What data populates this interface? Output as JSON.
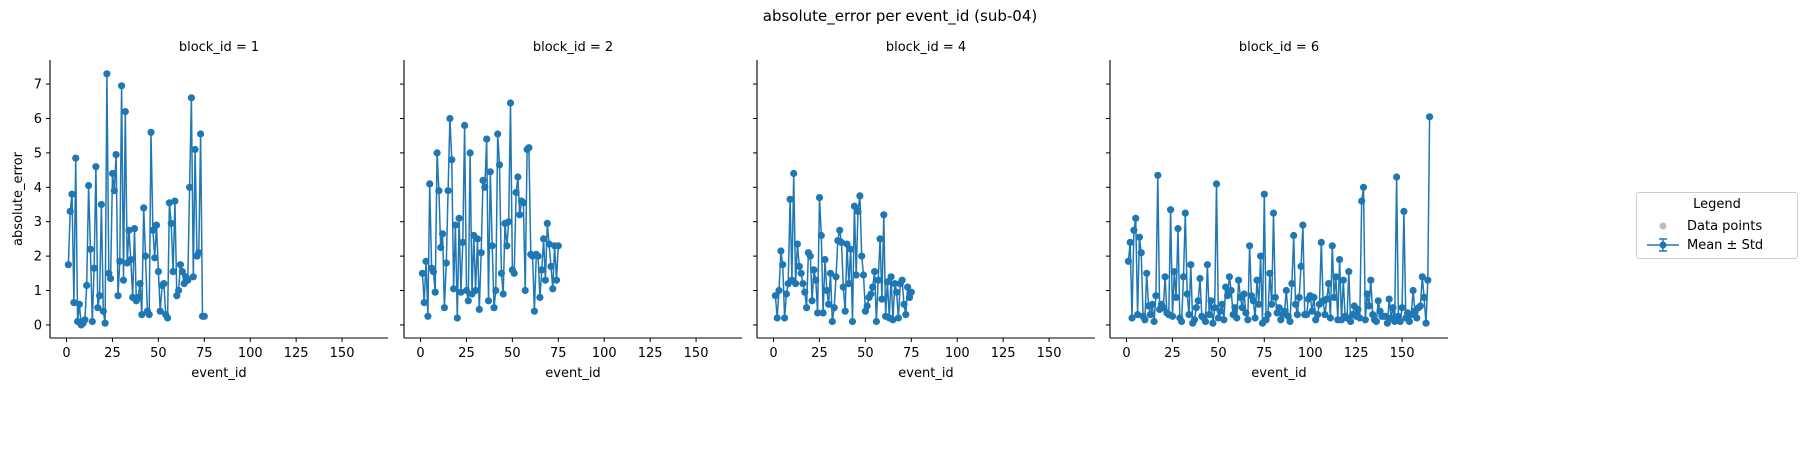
{
  "chart_data": {
    "type": "line",
    "title": "absolute_error per event_id (sub-04)",
    "xlabel": "event_id",
    "ylabel": "absolute_error",
    "xlim": [
      -9,
      175
    ],
    "ylim": [
      -0.38,
      7.7
    ],
    "xticks": [
      0,
      25,
      50,
      75,
      100,
      125,
      150
    ],
    "yticks": [
      0,
      1,
      2,
      3,
      4,
      5,
      6,
      7
    ],
    "sharey": true,
    "grid": false,
    "colors": {
      "series": "#1f77b4",
      "points": "#bdbdbd",
      "axis": "#000000"
    },
    "legend": {
      "title": "Legend",
      "placement": "right-center-outside",
      "entries": [
        "Data points",
        "Mean ± Std"
      ]
    },
    "facets": [
      {
        "title": "block_id = 1",
        "block_id": 1,
        "x": [
          1,
          2,
          3,
          4,
          5,
          6,
          7,
          8,
          9,
          10,
          11,
          12,
          13,
          14,
          15,
          16,
          17,
          18,
          19,
          20,
          21,
          22,
          23,
          24,
          25,
          26,
          27,
          28,
          29,
          30,
          31,
          32,
          33,
          34,
          35,
          36,
          37,
          38,
          39,
          40,
          41,
          42,
          43,
          44,
          45,
          46,
          47,
          48,
          49,
          50,
          51,
          52,
          53,
          54,
          55,
          56,
          57,
          58,
          59,
          60,
          61,
          62,
          63,
          64,
          65,
          66,
          67,
          68,
          69,
          70,
          71,
          72,
          73,
          74,
          75
        ],
        "y": [
          1.75,
          3.3,
          3.8,
          0.65,
          4.85,
          0.1,
          0.6,
          0.0,
          0.05,
          0.15,
          1.15,
          4.05,
          2.2,
          0.1,
          1.65,
          4.6,
          0.5,
          0.85,
          3.5,
          0.4,
          0.05,
          7.3,
          1.5,
          1.35,
          4.4,
          3.9,
          4.95,
          0.85,
          1.85,
          6.95,
          1.3,
          6.2,
          1.8,
          2.75,
          1.9,
          0.8,
          2.8,
          0.7,
          0.8,
          1.2,
          0.3,
          3.4,
          2.0,
          0.4,
          0.3,
          5.6,
          2.75,
          1.95,
          2.9,
          1.55,
          0.4,
          1.15,
          1.2,
          0.3,
          0.2,
          3.55,
          2.95,
          1.55,
          3.6,
          0.85,
          1.0,
          1.75,
          1.55,
          1.2,
          1.4,
          1.3,
          4.0,
          6.6,
          1.4,
          5.1,
          2.0,
          2.1,
          5.55,
          0.25,
          0.25
        ]
      },
      {
        "title": "block_id = 2",
        "block_id": 2,
        "x": [
          1,
          2,
          3,
          4,
          5,
          6,
          7,
          8,
          9,
          10,
          11,
          12,
          13,
          14,
          15,
          16,
          17,
          18,
          19,
          20,
          21,
          22,
          23,
          24,
          25,
          26,
          27,
          28,
          29,
          30,
          31,
          32,
          33,
          34,
          35,
          36,
          37,
          38,
          39,
          40,
          41,
          42,
          43,
          44,
          45,
          46,
          47,
          48,
          49,
          50,
          51,
          52,
          53,
          54,
          55,
          56,
          57,
          58,
          59,
          60,
          61,
          62,
          63,
          64,
          65,
          66,
          67,
          68,
          69,
          70,
          71,
          72,
          73,
          74,
          75
        ],
        "y": [
          1.5,
          0.65,
          1.85,
          0.25,
          4.1,
          1.65,
          1.55,
          0.95,
          5.0,
          3.9,
          2.25,
          2.65,
          0.5,
          1.8,
          3.9,
          6.0,
          4.8,
          1.05,
          2.9,
          0.2,
          3.1,
          0.95,
          2.4,
          5.8,
          1.0,
          0.7,
          5.0,
          0.9,
          2.6,
          1.0,
          2.5,
          0.45,
          2.1,
          4.2,
          4.0,
          5.4,
          0.7,
          4.45,
          2.3,
          0.5,
          1.0,
          5.55,
          4.65,
          1.5,
          0.9,
          2.95,
          2.3,
          3.0,
          6.45,
          1.6,
          1.5,
          3.85,
          4.3,
          3.2,
          3.6,
          3.55,
          1.0,
          5.1,
          5.15,
          2.05,
          2.0,
          0.4,
          2.05,
          2.0,
          0.8,
          1.6,
          2.5,
          1.3,
          2.95,
          2.35,
          1.7,
          1.05,
          2.3,
          1.3,
          2.3
        ]
      },
      {
        "title": "block_id = 4",
        "block_id": 4,
        "x": [
          1,
          2,
          3,
          4,
          5,
          6,
          7,
          8,
          9,
          10,
          11,
          12,
          13,
          14,
          15,
          16,
          17,
          18,
          19,
          20,
          21,
          22,
          23,
          24,
          25,
          26,
          27,
          28,
          29,
          30,
          31,
          32,
          33,
          34,
          35,
          36,
          37,
          38,
          39,
          40,
          41,
          42,
          43,
          44,
          45,
          46,
          47,
          48,
          49,
          50,
          51,
          52,
          53,
          54,
          55,
          56,
          57,
          58,
          59,
          60,
          61,
          62,
          63,
          64,
          65,
          66,
          67,
          68,
          69,
          70,
          71,
          72,
          73,
          74,
          75
        ],
        "y": [
          0.85,
          0.2,
          1.0,
          2.15,
          1.75,
          0.2,
          0.9,
          1.2,
          3.65,
          1.3,
          4.4,
          1.2,
          2.35,
          1.7,
          1.5,
          1.2,
          0.95,
          0.5,
          2.1,
          2.0,
          0.7,
          1.6,
          1.3,
          0.35,
          3.7,
          2.6,
          0.35,
          1.9,
          1.0,
          0.6,
          1.5,
          0.1,
          0.5,
          1.4,
          2.45,
          2.75,
          2.4,
          1.1,
          0.4,
          2.35,
          1.2,
          2.2,
          0.1,
          3.45,
          1.45,
          3.3,
          3.75,
          2.0,
          1.45,
          0.4,
          0.55,
          0.8,
          0.9,
          1.1,
          1.55,
          0.1,
          1.3,
          2.5,
          0.75,
          3.2,
          0.25,
          1.25,
          0.2,
          1.4,
          0.15,
          1.2,
          0.95,
          0.2,
          1.2,
          1.3,
          0.6,
          0.3,
          1.1,
          0.8,
          0.95
        ]
      },
      {
        "title": "block_id = 6",
        "block_id": 6,
        "x": [
          1,
          2,
          3,
          4,
          5,
          6,
          7,
          8,
          9,
          10,
          11,
          12,
          13,
          14,
          15,
          16,
          17,
          18,
          19,
          20,
          21,
          22,
          23,
          24,
          25,
          26,
          27,
          28,
          29,
          30,
          31,
          32,
          33,
          34,
          35,
          36,
          37,
          38,
          39,
          40,
          41,
          42,
          43,
          44,
          45,
          46,
          47,
          48,
          49,
          50,
          51,
          52,
          53,
          54,
          55,
          56,
          57,
          58,
          59,
          60,
          61,
          62,
          63,
          64,
          65,
          66,
          67,
          68,
          69,
          70,
          71,
          72,
          73,
          74,
          75,
          76,
          77,
          78,
          79,
          80,
          81,
          82,
          83,
          84,
          85,
          86,
          87,
          88,
          89,
          90,
          91,
          92,
          93,
          94,
          95,
          96,
          97,
          98,
          99,
          100,
          101,
          102,
          103,
          104,
          105,
          106,
          107,
          108,
          109,
          110,
          111,
          112,
          113,
          114,
          115,
          116,
          117,
          118,
          119,
          120,
          121,
          122,
          123,
          124,
          125,
          126,
          127,
          128,
          129,
          130,
          131,
          132,
          133,
          134,
          135,
          136,
          137,
          138,
          139,
          140,
          141,
          142,
          143,
          144,
          145,
          146,
          147,
          148,
          149,
          150,
          151,
          152,
          153,
          154,
          155,
          156,
          157,
          158,
          159,
          160,
          161,
          162,
          163,
          164,
          165
        ],
        "y": [
          1.85,
          2.4,
          0.2,
          2.75,
          3.1,
          0.3,
          2.55,
          2.1,
          0.25,
          0.15,
          1.5,
          0.55,
          0.3,
          0.6,
          0.1,
          0.85,
          4.35,
          0.45,
          0.6,
          0.5,
          1.4,
          0.35,
          0.3,
          3.35,
          0.25,
          1.55,
          0.8,
          2.8,
          0.2,
          0.1,
          1.4,
          3.25,
          0.9,
          0.3,
          1.75,
          0.05,
          0.15,
          0.5,
          0.7,
          1.35,
          0.25,
          0.2,
          0.1,
          1.75,
          0.3,
          0.7,
          0.05,
          0.5,
          4.1,
          0.2,
          0.4,
          0.6,
          0.15,
          1.1,
          0.85,
          1.4,
          1.0,
          0.3,
          0.5,
          0.2,
          1.3,
          0.8,
          0.5,
          0.9,
          0.35,
          0.15,
          2.3,
          0.85,
          0.7,
          0.2,
          1.3,
          0.6,
          2.0,
          0.05,
          3.8,
          0.15,
          0.3,
          1.5,
          0.6,
          3.25,
          0.8,
          0.35,
          0.5,
          0.15,
          0.3,
          0.4,
          1.0,
          0.25,
          0.1,
          1.2,
          2.6,
          0.6,
          0.3,
          0.8,
          1.7,
          2.9,
          0.3,
          0.3,
          0.75,
          0.85,
          0.4,
          0.8,
          0.15,
          0.3,
          0.6,
          2.4,
          0.7,
          0.3,
          0.75,
          1.2,
          0.2,
          2.3,
          0.8,
          1.4,
          0.15,
          1.9,
          0.15,
          1.3,
          0.25,
          0.2,
          1.55,
          0.1,
          0.3,
          0.55,
          0.25,
          0.45,
          0.2,
          3.6,
          4.0,
          0.15,
          0.9,
          0.55,
          1.3,
          0.3,
          0.15,
          0.1,
          0.7,
          0.4,
          0.25,
          0.25,
          0.25,
          0.05,
          0.75,
          0.2,
          0.5,
          0.1,
          4.3,
          0.25,
          0.1,
          0.5,
          3.3,
          0.2,
          0.35,
          0.1,
          0.3,
          1.0,
          0.4,
          0.2,
          0.5,
          0.55,
          1.4,
          0.8,
          0.05,
          1.3,
          6.05
        ]
      }
    ]
  }
}
